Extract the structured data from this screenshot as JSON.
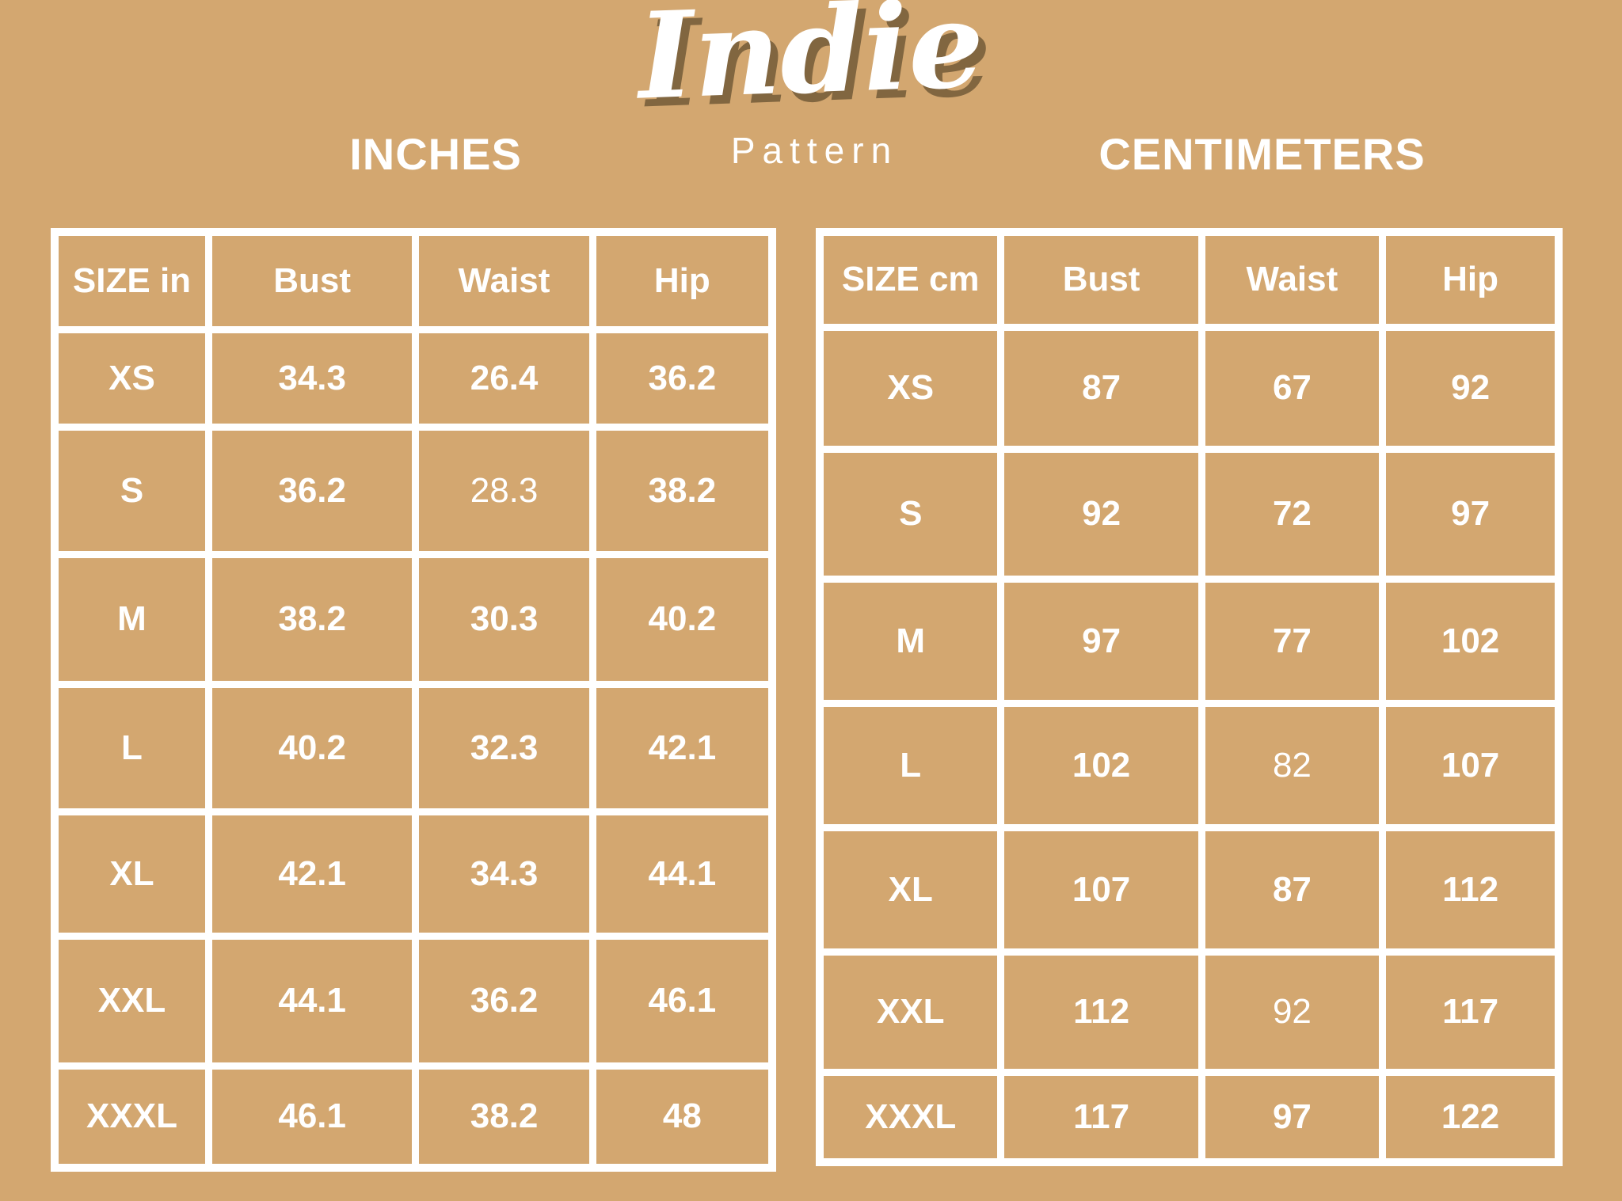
{
  "page": {
    "background_color": "#d3a770",
    "foreground_color": "#ffffff",
    "logo_shadow_color": "rgba(109,86,52,0.8)"
  },
  "brand": {
    "title": "Indie",
    "subtitle": "Pattern"
  },
  "chart_data": [
    {
      "id": "inches",
      "type": "table",
      "title": "INCHES",
      "columns": [
        "SIZE in",
        "Bust",
        "Waist",
        "Hip"
      ],
      "rows": [
        [
          "XS",
          "34.3",
          "26.4",
          "36.2"
        ],
        [
          "S",
          "36.2",
          "28.3",
          "38.2"
        ],
        [
          "M",
          "38.2",
          "30.3",
          "40.2"
        ],
        [
          "L",
          "40.2",
          "32.3",
          "42.1"
        ],
        [
          "XL",
          "42.1",
          "34.3",
          "44.1"
        ],
        [
          "XXL",
          "44.1",
          "36.2",
          "46.1"
        ],
        [
          "XXXL",
          "46.1",
          "38.2",
          "48"
        ]
      ],
      "light_cells": [
        [
          1,
          2
        ]
      ]
    },
    {
      "id": "centimeters",
      "type": "table",
      "title": "CENTIMETERS",
      "columns": [
        "SIZE cm",
        "Bust",
        "Waist",
        "Hip"
      ],
      "rows": [
        [
          "XS",
          "87",
          "67",
          "92"
        ],
        [
          "S",
          "92",
          "72",
          "97"
        ],
        [
          "M",
          "97",
          "77",
          "102"
        ],
        [
          "L",
          "102",
          "82",
          "107"
        ],
        [
          "XL",
          "107",
          "87",
          "112"
        ],
        [
          "XXL",
          "112",
          "92",
          "117"
        ],
        [
          "XXXL",
          "117",
          "97",
          "122"
        ]
      ],
      "light_cells": [
        [
          3,
          2
        ],
        [
          5,
          2
        ]
      ]
    }
  ]
}
